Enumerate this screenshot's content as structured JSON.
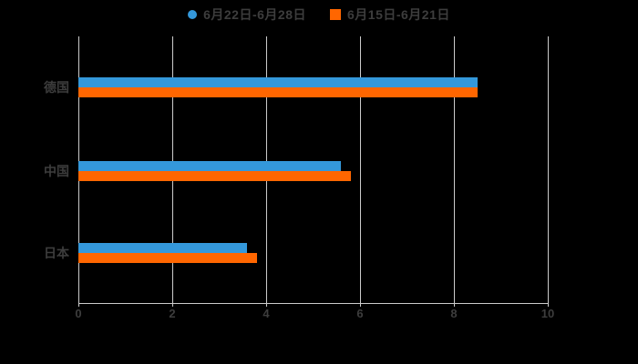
{
  "background": "#000000",
  "text_color": "#3d3d3d",
  "grid_color": "#cccccc",
  "chart_data": {
    "type": "bar",
    "orientation": "horizontal",
    "title": "",
    "xlabel": "",
    "ylabel": "",
    "categories": [
      "德国",
      "中国",
      "日本"
    ],
    "series": [
      {
        "name": "6月22日-6月28日",
        "color": "#3498db",
        "marker": "circle",
        "values": [
          8.5,
          5.6,
          3.6
        ]
      },
      {
        "name": "6月15日-6月21日",
        "color": "#ff6600",
        "marker": "square",
        "values": [
          8.5,
          5.8,
          3.8
        ]
      }
    ],
    "xlim": [
      0,
      10
    ],
    "xticks": [
      "0",
      "2",
      "4",
      "6",
      "8",
      "10"
    ],
    "grid": "vertical-only",
    "legend_position": "top-center"
  }
}
